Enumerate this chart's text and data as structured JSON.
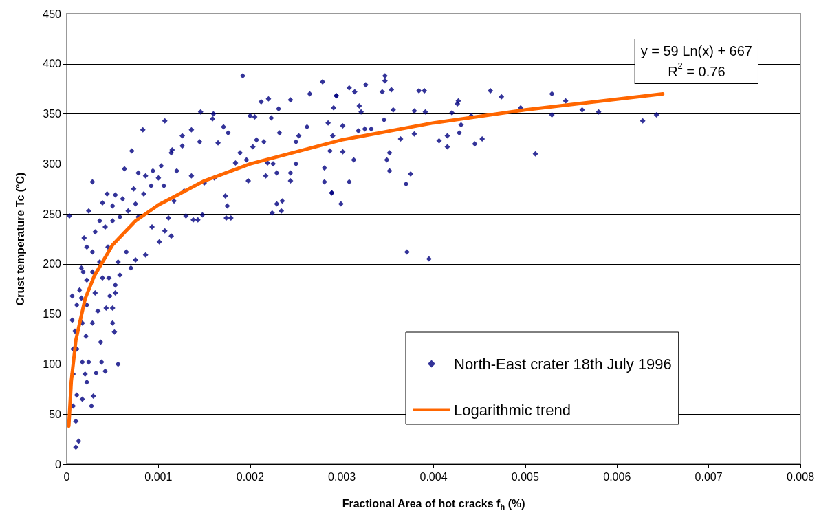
{
  "chart_data": {
    "type": "scatter",
    "xlabel": "Fractional Area of hot cracks f$_{h}$ (%)",
    "ylabel": "Crust temperature Tc (°C)",
    "xlim": [
      0,
      0.008
    ],
    "xticks": [
      0,
      0.001,
      0.002,
      0.003,
      0.004,
      0.005,
      0.006,
      0.007,
      0.008
    ],
    "ylim": [
      0,
      450
    ],
    "yticks": [
      0,
      50,
      100,
      150,
      200,
      250,
      300,
      350,
      400,
      450
    ],
    "grid": "y",
    "legend": "bottom right",
    "marker": "diamond",
    "annotations": [
      "y = 59 Ln(x) + 667\nR$^{2}$ = 0.76"
    ],
    "series": [
      {
        "name": "North-East crater 18th July 1996",
        "color": "#000080",
        "type": "scatter",
        "x": [
          0.00347,
          0.00347,
          0.00308,
          0.00314,
          0.00326,
          0.00344,
          0.00354,
          0.00294,
          0.00291,
          0.00319,
          0.00321,
          0.00356,
          0.00384,
          0.0039,
          0.00379,
          0.00391,
          0.00346,
          0.00301,
          0.0029,
          0.00318,
          0.00325,
          0.00332,
          0.00364,
          0.00379,
          0.00301,
          0.00313,
          0.00352,
          0.00349,
          0.00352,
          0.00375,
          0.0037,
          0.00308,
          0.00289,
          0.00299,
          0.00371,
          0.00395,
          0.0042,
          0.00426,
          0.00427,
          0.0043,
          0.00428,
          0.00441,
          0.00415,
          0.00406,
          0.00415,
          0.00445,
          0.00453,
          0.00462,
          0.00474,
          0.00495,
          0.00511,
          0.00529,
          0.00529,
          0.00544,
          0.00562,
          0.0058,
          0.00628,
          0.00643,
          0.00192,
          0.00279,
          0.00265,
          0.00294,
          0.00146,
          0.0016,
          0.00107,
          0.00083,
          0.00159,
          0.00212,
          0.0022,
          0.00244,
          0.00231,
          0.00223,
          0.002,
          0.00205,
          0.00171,
          0.00136,
          0.00126,
          0.00165,
          0.00145,
          0.00126,
          0.00115,
          0.00262,
          0.00285,
          0.00253,
          0.0025,
          0.00232,
          0.00215,
          0.00207,
          0.00176,
          0.00189,
          0.00184,
          0.00203,
          0.00196,
          0.00219,
          0.00225,
          0.0025,
          0.00287,
          0.00281,
          0.00281,
          0.00289,
          0.00244,
          0.00244,
          0.00229,
          0.00198,
          0.00217,
          0.00224,
          0.00235,
          0.00229,
          0.00234,
          0.00173,
          0.00179,
          0.00174,
          0.00148,
          0.00143,
          0.00138,
          0.0013,
          0.00175,
          0.00111,
          0.00114,
          0.00101,
          0.00107,
          0.00093,
          0.00086,
          0.00075,
          0.0007,
          0.00056,
          0.00052,
          0.0005,
          0.00042,
          0.00038,
          0.00032,
          0.00037,
          0.00029,
          0.00027,
          0.00013,
          0.0001,
          0.0001,
          7e-05,
          3e-05,
          0.00028,
          0.00071,
          0.00063,
          0.00044,
          0.00053,
          0.00024,
          0.00039,
          0.00019,
          0.00016,
          0.00014,
          6e-05,
          6e-05,
          7e-05,
          7e-05,
          0.00011,
          0.00017,
          0.00022,
          0.00024,
          0.00021,
          0.00028,
          0.00034,
          0.00043,
          0.0005,
          0.00047,
          0.00053,
          0.00053,
          0.00046,
          0.00058,
          0.00056,
          0.00065,
          0.00031,
          0.00022,
          0.00017,
          0.00016,
          0.00011,
          0.00018,
          0.00022,
          0.00031,
          0.00042,
          0.0005,
          0.00058,
          0.00067,
          0.00075,
          0.00084,
          0.00092,
          0.001,
          0.00073,
          0.00061,
          0.0005,
          0.00036,
          0.00028,
          0.00036,
          0.00045,
          0.00022,
          0.00028,
          0.00039,
          0.00011,
          9e-05,
          0.00017,
          0.0002,
          0.00078,
          0.00086,
          0.00078,
          0.00094,
          0.00106,
          0.0012,
          0.00114,
          0.00103,
          0.00117,
          0.00136,
          0.00128,
          0.0015,
          0.00161
        ],
        "values": [
          388,
          383,
          376,
          372,
          379,
          372,
          374,
          368,
          356,
          358,
          352,
          354,
          373,
          373,
          353,
          352,
          344,
          338,
          328,
          333,
          335,
          335,
          325,
          330,
          312,
          304,
          311,
          304,
          293,
          290,
          280,
          282,
          271,
          260,
          212,
          205,
          351,
          360,
          363,
          339,
          331,
          348,
          328,
          323,
          317,
          320,
          325,
          373,
          367,
          356,
          310,
          370,
          349,
          363,
          354,
          352,
          343,
          349,
          388,
          382,
          370,
          368,
          352,
          350,
          343,
          334,
          345,
          362,
          365,
          364,
          355,
          346,
          348,
          347,
          337,
          334,
          328,
          321,
          322,
          318,
          314,
          337,
          341,
          328,
          322,
          331,
          322,
          324,
          331,
          311,
          301,
          317,
          304,
          301,
          300,
          300,
          313,
          296,
          282,
          271,
          291,
          283,
          291,
          283,
          288,
          251,
          263,
          260,
          253,
          268,
          246,
          246,
          249,
          244,
          244,
          248,
          258,
          246,
          228,
          222,
          233,
          237,
          209,
          204,
          196,
          100,
          132,
          141,
          93,
          102,
          91,
          122,
          68,
          58,
          23,
          17,
          43,
          58,
          248,
          282,
          313,
          295,
          270,
          269,
          253,
          261,
          226,
          196,
          174,
          168,
          144,
          115,
          90,
          69,
          65,
          82,
          102,
          128,
          141,
          153,
          156,
          156,
          168,
          171,
          179,
          186,
          189,
          202,
          212,
          171,
          159,
          141,
          166,
          115,
          192,
          217,
          232,
          237,
          243,
          247,
          253,
          260,
          270,
          278,
          286,
          275,
          265,
          258,
          243,
          212,
          202,
          217,
          184,
          192,
          186,
          159,
          133,
          102,
          90,
          247,
          288,
          291,
          293,
          278,
          293,
          311,
          298,
          263,
          288,
          273,
          281,
          286
        ]
      },
      {
        "name": "Logarithmic trend",
        "color": "#ff6600",
        "type": "line",
        "marker": "none",
        "x": [
          2.3e-05,
          5e-05,
          0.0001,
          0.0002,
          0.0003,
          0.0005,
          0.00075,
          0.001,
          0.0015,
          0.002,
          0.003,
          0.004,
          0.005,
          0.0065
        ],
        "values": [
          38,
          83,
          124,
          165,
          188,
          219,
          243,
          259,
          283,
          300,
          324,
          341,
          354,
          370
        ]
      }
    ]
  }
}
